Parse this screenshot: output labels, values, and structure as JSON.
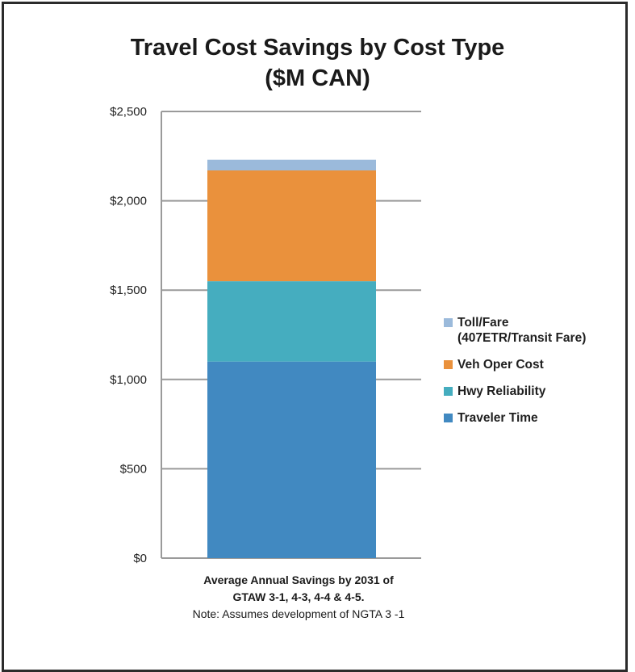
{
  "title_line1": "Travel Cost Savings by Cost Type",
  "title_line2": "($M CAN)",
  "caption": {
    "line1": "Average Annual Savings by 2031 of",
    "line2": "GTAW 3-1, 4-3, 4-4  & 4-5.",
    "line3": "Note: Assumes development of NGTA 3 -1"
  },
  "chart_data": {
    "type": "bar",
    "stacked": true,
    "categories": [
      ""
    ],
    "ylim": [
      0,
      2500
    ],
    "yticks": [
      0,
      500,
      1000,
      1500,
      2000,
      2500
    ],
    "ytick_labels": [
      "$0",
      "$500",
      "$1,000",
      "$1,500",
      "$2,000",
      "$2,500"
    ],
    "grid": true,
    "legend_position": "right",
    "series": [
      {
        "name": "Traveler Time",
        "values": [
          1100
        ],
        "color": "#4189c1"
      },
      {
        "name": "Hwy Reliability",
        "values": [
          450
        ],
        "color": "#45adbf"
      },
      {
        "name": "Veh Oper Cost",
        "values": [
          620
        ],
        "color": "#ea913c"
      },
      {
        "name": "Toll/Fare (407ETR/Transit Fare)",
        "values": [
          60
        ],
        "color": "#9bbadb"
      }
    ],
    "legend": [
      {
        "label_line1": "Toll/Fare",
        "label_line2": "(407ETR/Transit Fare)",
        "color": "#9bbadb"
      },
      {
        "label_line1": "Veh Oper Cost",
        "label_line2": "",
        "color": "#ea913c"
      },
      {
        "label_line1": "Hwy Reliability",
        "label_line2": "",
        "color": "#45adbf"
      },
      {
        "label_line1": "Traveler Time",
        "label_line2": "",
        "color": "#4189c1"
      }
    ]
  }
}
